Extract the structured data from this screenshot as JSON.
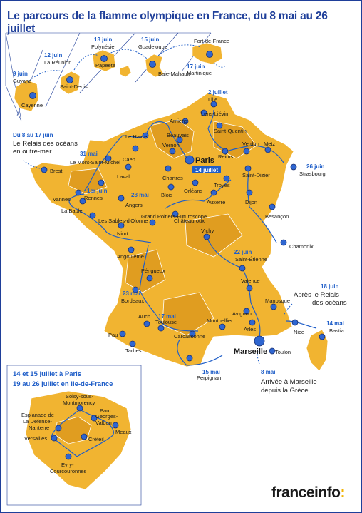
{
  "title": "Le parcours de la flamme olympique en France, du 8 mai au 26 juillet",
  "overseas": {
    "labels": {
      "guyane_date": "9 juin",
      "guyane": "Guyane",
      "cayenne": "Cayenne",
      "reunion_date": "12 juin",
      "reunion": "La Réunion",
      "saint_denis": "Saint-Denis",
      "polynesie_date": "13 juin",
      "polynesie": "Polynésie",
      "papeete": "Papeete",
      "guadeloupe_date": "15 juin",
      "guadeloupe": "Guadeloupe",
      "baie_mahault": "Baie-Mahault",
      "martinique_date": "17 juin",
      "martinique": "Martinique",
      "fort_de_france": "Fort-de-France"
    }
  },
  "notes": {
    "relais_line1": "Du 8 au 17 juin",
    "relais_line2": "Le Relais des océans",
    "relais_line3": "en outre-mer",
    "apres_date": "18 juin",
    "apres_line1": "Après le Relais",
    "apres_line2": "des océans",
    "arrivee_date": "8 mai",
    "arrivee_line1": "Arrivée à Marseille",
    "arrivee_line2": "depuis la Grèce",
    "paris_badge": "14 juillet"
  },
  "dates": {
    "d2juillet": "2 juillet",
    "d26juin": "26 juin",
    "d31mai": "31 mai",
    "d1erjuin": "1er juin",
    "d28mai": "28 mai",
    "d22juin": "22 juin",
    "d23mai": "23 mai",
    "d17mai": "17 mai",
    "d14mai": "14 mai",
    "d15mai": "15 mai"
  },
  "cities": {
    "lille": "Lille",
    "lens_lievin": "Lens-Liévin",
    "amiens": "Amiens",
    "saint_quentin": "Saint-Quentin",
    "le_havre": "Le Havre",
    "beauvais": "Beauvais",
    "vernon": "Vernon",
    "caen": "Caen",
    "mont_st_michel": "Le Mont-Saint-Michel",
    "paris": "Paris",
    "reims": "Reims",
    "verdun": "Verdun",
    "metz": "Metz",
    "strasbourg": "Strasbourg",
    "saint_dizier": "Saint-Dizier",
    "troyes": "Troyes",
    "brest": "Brest",
    "rennes": "Rennes",
    "laval": "Laval",
    "chartres": "Chartres",
    "orleans": "Orléans",
    "blois": "Blois",
    "auxerre": "Auxerre",
    "dijon": "Dijon",
    "besancon": "Besançon",
    "vannes": "Vannes",
    "la_baule": "La Baule",
    "angers": "Angers",
    "sables": "Les Sables-d'Olonne",
    "niort": "Niort",
    "poitiers": "Grand Poitiers-Futuroscope",
    "chateauroux": "Châteauroux",
    "vichy": "Vichy",
    "saint_etienne": "Saint-Étienne",
    "chamonix": "Chamonix",
    "angouleme": "Angoulême",
    "perigueux": "Périgueux",
    "bordeaux": "Bordeaux",
    "valence": "Valence",
    "manosque": "Manosque",
    "avignon": "Avignon",
    "arles": "Arles",
    "nice": "Nice",
    "bastia": "Bastia",
    "auch": "Auch",
    "toulouse": "Toulouse",
    "pau": "Pau",
    "tarbes": "Tarbes",
    "carcassonne": "Carcassonne",
    "montpellier": "Montpellier",
    "marseille": "Marseille",
    "toulon": "Toulon",
    "perpignan": "Perpignan"
  },
  "idf": {
    "heading1": "14 et 15 juillet à Paris",
    "heading2": "19 au 26 juillet en Ile-de-France",
    "soisy1": "Soisy-sous-",
    "soisy2": "Montmorency",
    "esplanade1": "Esplanade de",
    "esplanade2": "La Défense-",
    "esplanade3": "Nanterre",
    "parc1": "Parc",
    "parc2": "Georges-",
    "parc3": "Valbon",
    "meaux": "Meaux",
    "versailles": "Versailles",
    "creteil": "Créteil",
    "evry1": "Évry-",
    "evry2": "Courcouronnes"
  },
  "brand": {
    "name": "franceinfo",
    "suffix": ":"
  },
  "colors": {
    "accent": "#1f5ec8",
    "land": "#f1b431",
    "land_dark": "#e09d20",
    "frame": "#1f3f9a"
  }
}
